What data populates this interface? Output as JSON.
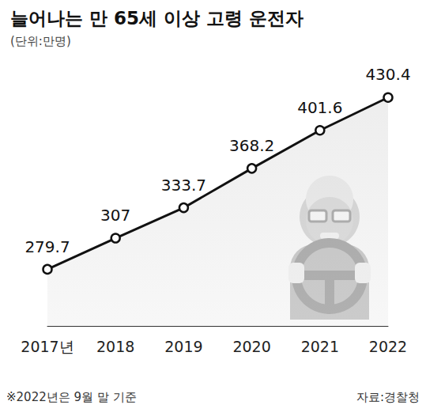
{
  "chart_data": {
    "type": "line",
    "title": "늘어나는 만 65세 이상 고령 운전자",
    "subtitle": "(단위:만명)",
    "categories": [
      "2017년",
      "2018",
      "2019",
      "2020",
      "2021",
      "2022"
    ],
    "values": [
      279.7,
      307,
      333.7,
      368.2,
      401.6,
      430.4
    ],
    "color": "#111111",
    "marker": "circle",
    "ylim": [
      230,
      450
    ],
    "grid": false,
    "data_labels": true,
    "tick_labels": "x",
    "notes": [
      "※2022년은 9월 말 기준"
    ],
    "source": "자료:경찰청"
  }
}
